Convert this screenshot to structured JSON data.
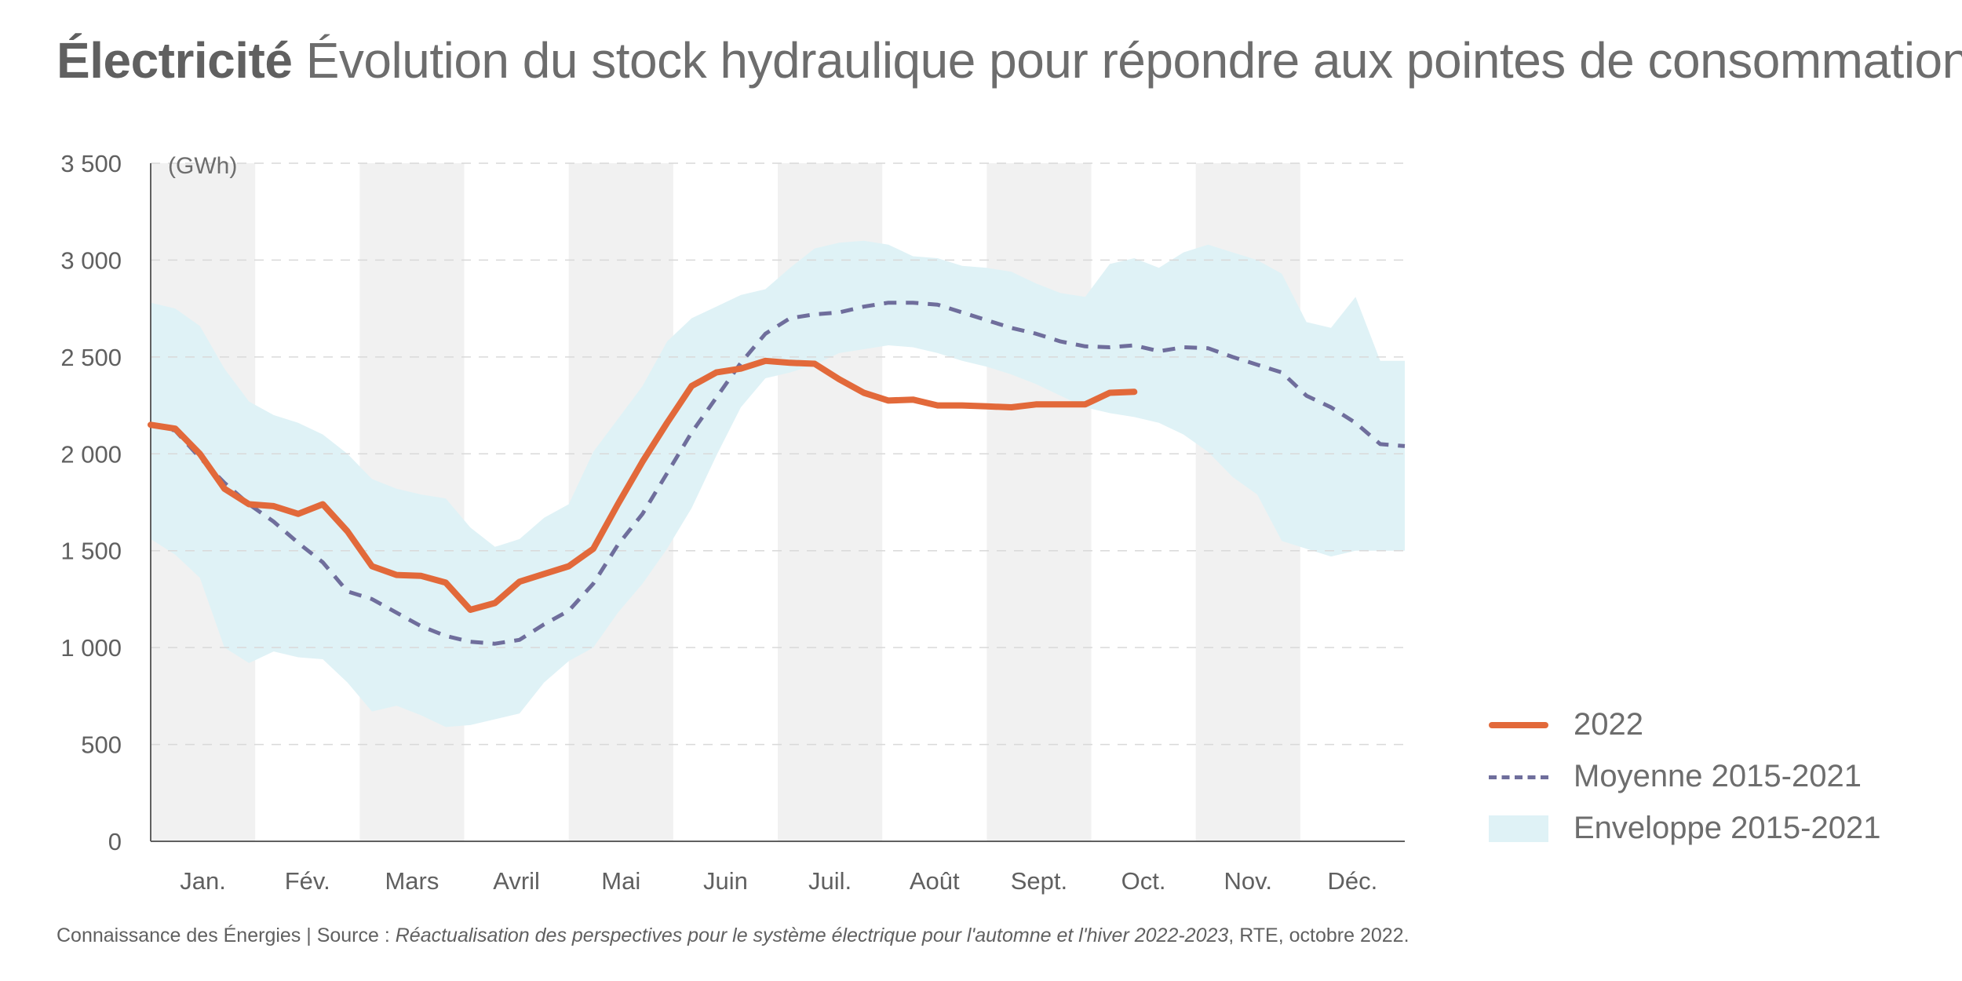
{
  "title": {
    "bold": "Électricité",
    "rest": "Évolution du stock hydraulique pour répondre aux pointes de consommation"
  },
  "footer": {
    "prefix": "Connaissance des Énergies | Source : ",
    "source_italic": "Réactualisation des perspectives pour le système électrique pour l'automne et l'hiver 2022-2023",
    "suffix": ", RTE, octobre 2022."
  },
  "legend": [
    {
      "label": "2022",
      "kind": "line",
      "color": "#e2693a"
    },
    {
      "label": "Moyenne 2015-2021",
      "kind": "dash",
      "color": "#6f6e9c"
    },
    {
      "label": "Enveloppe 2015-2021",
      "kind": "band",
      "color": "#dff2f6"
    }
  ],
  "chart_data": {
    "type": "line",
    "ylabel": "(GWh)",
    "ylim": [
      0,
      3500
    ],
    "yticks": [
      0,
      500,
      1000,
      1500,
      2000,
      2500,
      3000,
      3500
    ],
    "ytick_labels": [
      "0",
      "500",
      "1 000",
      "1 500",
      "2 000",
      "2 500",
      "3 000",
      "3 500"
    ],
    "xlim": [
      1,
      52
    ],
    "x_unit": "week",
    "months": [
      "Jan.",
      "Fév.",
      "Mars",
      "Avril",
      "Mai",
      "Juin",
      "Juil.",
      "Août",
      "Sept.",
      "Oct.",
      "Nov.",
      "Déc."
    ],
    "shaded_months": [
      0,
      2,
      4,
      6,
      8,
      10
    ],
    "grid": "horizontal dashed",
    "colors": {
      "line_2022": "#e2693a",
      "mean": "#6f6e9c",
      "band": "#dff2f6",
      "month_shade": "#f1f1f1",
      "grid": "#d9d9d9",
      "axis": "#606060"
    },
    "series": [
      {
        "name": "2022",
        "style": "solid",
        "x": [
          1,
          2,
          3,
          4,
          5,
          6,
          7,
          8,
          9,
          10,
          11,
          12,
          13,
          14,
          15,
          16,
          17,
          18,
          19,
          20,
          21,
          22,
          23,
          24,
          25,
          26,
          27,
          28,
          29,
          30,
          31,
          32,
          33,
          34,
          35,
          36,
          37,
          38,
          39,
          40,
          41
        ],
        "values": [
          2150,
          2130,
          2000,
          1820,
          1740,
          1730,
          1690,
          1740,
          1600,
          1420,
          1375,
          1370,
          1335,
          1195,
          1230,
          1340,
          1380,
          1420,
          1510,
          1740,
          1960,
          2160,
          2350,
          2420,
          2440,
          2480,
          2470,
          2465,
          2385,
          2315,
          2275,
          2280,
          2250,
          2250,
          2245,
          2240,
          2255,
          2255,
          2255,
          2315,
          2320
        ]
      },
      {
        "name": "Moyenne 2015-2021",
        "style": "dashed",
        "x": [
          1,
          2,
          3,
          4,
          5,
          6,
          7,
          8,
          9,
          10,
          11,
          12,
          13,
          14,
          15,
          16,
          17,
          18,
          19,
          20,
          21,
          22,
          23,
          24,
          25,
          26,
          27,
          28,
          29,
          30,
          31,
          32,
          33,
          34,
          35,
          36,
          37,
          38,
          39,
          40,
          41,
          42,
          43,
          44,
          45,
          46,
          47,
          48,
          49,
          50,
          51,
          52
        ],
        "values": [
          2150,
          2120,
          1980,
          1850,
          1740,
          1650,
          1540,
          1440,
          1290,
          1250,
          1180,
          1110,
          1060,
          1030,
          1020,
          1040,
          1120,
          1190,
          1330,
          1530,
          1690,
          1900,
          2110,
          2290,
          2470,
          2620,
          2700,
          2720,
          2730,
          2760,
          2780,
          2780,
          2770,
          2730,
          2690,
          2650,
          2620,
          2580,
          2555,
          2550,
          2560,
          2530,
          2550,
          2545,
          2500,
          2460,
          2420,
          2300,
          2240,
          2160,
          2050,
          2040
        ]
      }
    ],
    "band": {
      "name": "Enveloppe 2015-2021",
      "x": [
        1,
        2,
        3,
        4,
        5,
        6,
        7,
        8,
        9,
        10,
        11,
        12,
        13,
        14,
        15,
        16,
        17,
        18,
        19,
        20,
        21,
        22,
        23,
        24,
        25,
        26,
        27,
        28,
        29,
        30,
        31,
        32,
        33,
        34,
        35,
        36,
        37,
        38,
        39,
        40,
        41,
        42,
        43,
        44,
        45,
        46,
        47,
        48,
        49,
        50,
        51,
        52
      ],
      "upper": [
        2780,
        2750,
        2660,
        2440,
        2270,
        2200,
        2160,
        2100,
        2000,
        1870,
        1820,
        1790,
        1770,
        1620,
        1520,
        1560,
        1670,
        1740,
        2010,
        2180,
        2350,
        2580,
        2700,
        2760,
        2820,
        2850,
        2960,
        3060,
        3090,
        3100,
        3080,
        3020,
        3010,
        2970,
        2960,
        2940,
        2880,
        2830,
        2810,
        2980,
        3010,
        2960,
        3040,
        3080,
        3040,
        3000,
        2930,
        2680,
        2650,
        2810,
        2480,
        2480
      ],
      "lower": [
        1560,
        1480,
        1360,
        1000,
        920,
        980,
        950,
        940,
        820,
        670,
        700,
        650,
        590,
        600,
        630,
        660,
        820,
        930,
        1000,
        1180,
        1330,
        1510,
        1720,
        1990,
        2240,
        2390,
        2420,
        2460,
        2520,
        2540,
        2560,
        2550,
        2520,
        2480,
        2450,
        2410,
        2360,
        2300,
        2240,
        2210,
        2190,
        2160,
        2100,
        2010,
        1880,
        1790,
        1550,
        1510,
        1470,
        1500,
        1500,
        1500
      ]
    }
  }
}
